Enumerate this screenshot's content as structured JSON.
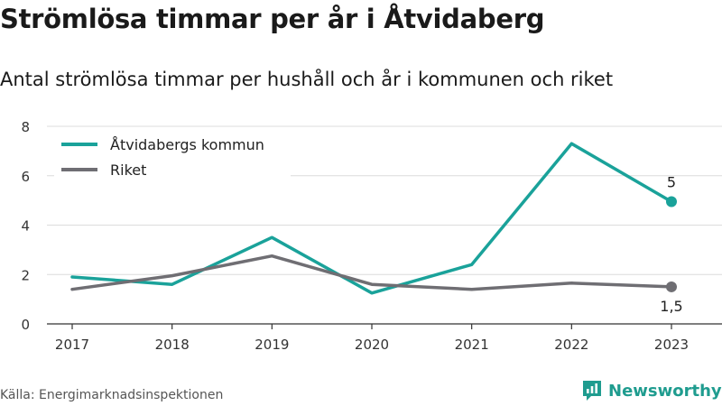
{
  "title": "Strömlösa timmar per år i Åtvidaberg",
  "subtitle": "Antal strömlösa timmar per hushåll och år i kommunen och riket",
  "source": "Källa: Energimarknadsinspektionen",
  "brand": {
    "name": "Newsworthy",
    "color": "#1f9c8f",
    "icon": "newsworthy-logo-icon"
  },
  "chart_data": {
    "type": "line",
    "x": [
      "2017",
      "2018",
      "2019",
      "2020",
      "2021",
      "2022",
      "2023"
    ],
    "yticks": [
      "0",
      "2",
      "4",
      "6",
      "8"
    ],
    "ylim": [
      0,
      8
    ],
    "grid": true,
    "legend_position": "top-left",
    "series": [
      {
        "name": "Åtvidabergs kommun",
        "color": "#1aa29a",
        "values": [
          1.9,
          1.6,
          3.5,
          1.25,
          2.4,
          7.3,
          4.95
        ],
        "end_label": "5"
      },
      {
        "name": "Riket",
        "color": "#6f6e73",
        "values": [
          1.4,
          1.95,
          2.75,
          1.6,
          1.4,
          1.65,
          1.5
        ],
        "end_label": "1,5"
      }
    ]
  }
}
